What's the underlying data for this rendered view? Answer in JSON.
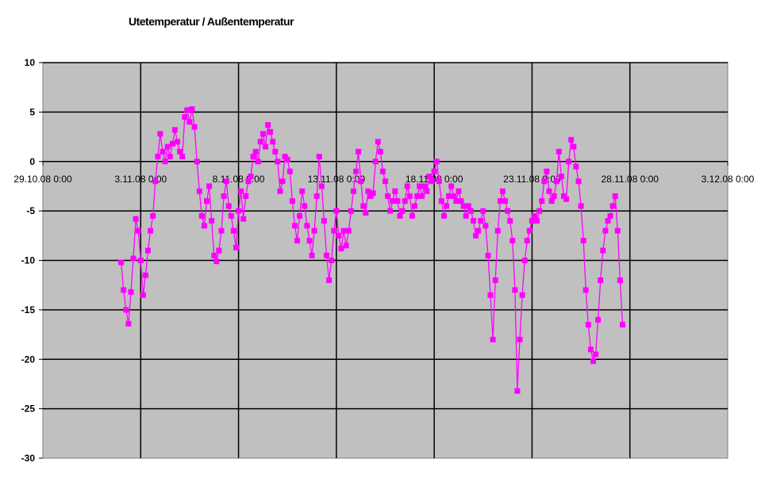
{
  "chart_data": {
    "type": "line",
    "title": "Utetemperatur / Außentemperatur",
    "xlabel": "",
    "ylabel": "",
    "ylim": [
      -30,
      10
    ],
    "yticks": [
      10,
      5,
      0,
      -5,
      -10,
      -15,
      -20,
      -25,
      -30
    ],
    "xlim": [
      "29.10.08 0:00",
      "3.12.08 0:00"
    ],
    "xticks": [
      "29.10.08 0:00",
      "3.11.08 0:00",
      "8.11.08 0:00",
      "13.11.08 0:00",
      "18.11.08 0:00",
      "23.11.08 0:00",
      "28.11.08 0:00",
      "3.12.08 0:00"
    ],
    "grid": true,
    "plot_background": "#c0c0c0",
    "gridline_color": "#000000",
    "series": [
      {
        "color": "#ff00ff",
        "marker": "square",
        "points": [
          [
            "2.11.08 0:00",
            -10.2
          ],
          [
            "2.11.08 3:00",
            -13.0
          ],
          [
            "2.11.08 6:00",
            -15.0
          ],
          [
            "2.11.08 9:00",
            -16.4
          ],
          [
            "2.11.08 12:00",
            -13.2
          ],
          [
            "2.11.08 15:00",
            -9.8
          ],
          [
            "2.11.08 18:00",
            -5.8
          ],
          [
            "2.11.08 21:00",
            -7.0
          ],
          [
            "3.11.08 0:00",
            -10.0
          ],
          [
            "3.11.08 3:00",
            -13.5
          ],
          [
            "3.11.08 6:00",
            -11.5
          ],
          [
            "3.11.08 9:00",
            -9.0
          ],
          [
            "3.11.08 12:00",
            -7.0
          ],
          [
            "3.11.08 15:00",
            -5.5
          ],
          [
            "3.11.08 18:00",
            -2.0
          ],
          [
            "3.11.08 21:00",
            0.5
          ],
          [
            "4.11.08 0:00",
            2.8
          ],
          [
            "4.11.08 3:00",
            1.0
          ],
          [
            "4.11.08 6:00",
            0.0
          ],
          [
            "4.11.08 9:00",
            1.5
          ],
          [
            "4.11.08 12:00",
            0.5
          ],
          [
            "4.11.08 15:00",
            1.8
          ],
          [
            "4.11.08 18:00",
            3.2
          ],
          [
            "4.11.08 21:00",
            2.0
          ],
          [
            "5.11.08 0:00",
            1.0
          ],
          [
            "5.11.08 3:00",
            0.5
          ],
          [
            "5.11.08 6:00",
            4.5
          ],
          [
            "5.11.08 9:00",
            5.2
          ],
          [
            "5.11.08 12:00",
            4.0
          ],
          [
            "5.11.08 15:00",
            5.3
          ],
          [
            "5.11.08 18:00",
            3.5
          ],
          [
            "5.11.08 21:00",
            0.0
          ],
          [
            "6.11.08 0:00",
            -3.0
          ],
          [
            "6.11.08 3:00",
            -5.5
          ],
          [
            "6.11.08 6:00",
            -6.5
          ],
          [
            "6.11.08 9:00",
            -4.0
          ],
          [
            "6.11.08 12:00",
            -2.5
          ],
          [
            "6.11.08 15:00",
            -6.0
          ],
          [
            "6.11.08 18:00",
            -9.5
          ],
          [
            "6.11.08 21:00",
            -10.1
          ],
          [
            "7.11.08 0:00",
            -9.0
          ],
          [
            "7.11.08 3:00",
            -7.0
          ],
          [
            "7.11.08 6:00",
            -3.5
          ],
          [
            "7.11.08 9:00",
            -2.0
          ],
          [
            "7.11.08 12:00",
            -4.5
          ],
          [
            "7.11.08 15:00",
            -5.5
          ],
          [
            "7.11.08 18:00",
            -7.0
          ],
          [
            "7.11.08 21:00",
            -8.7
          ],
          [
            "8.11.08 0:00",
            -5.0
          ],
          [
            "8.11.08 3:00",
            -3.0
          ],
          [
            "8.11.08 6:00",
            -5.8
          ],
          [
            "8.11.08 9:00",
            -3.5
          ],
          [
            "8.11.08 12:00",
            -2.0
          ],
          [
            "8.11.08 15:00",
            -1.5
          ],
          [
            "8.11.08 18:00",
            0.5
          ],
          [
            "8.11.08 21:00",
            1.0
          ],
          [
            "9.11.08 0:00",
            0.0
          ],
          [
            "9.11.08 3:00",
            2.0
          ],
          [
            "9.11.08 6:00",
            2.8
          ],
          [
            "9.11.08 9:00",
            1.5
          ],
          [
            "9.11.08 12:00",
            3.7
          ],
          [
            "9.11.08 15:00",
            3.0
          ],
          [
            "9.11.08 18:00",
            2.0
          ],
          [
            "9.11.08 21:00",
            1.0
          ],
          [
            "10.11.08 0:00",
            0.0
          ],
          [
            "10.11.08 3:00",
            -3.0
          ],
          [
            "10.11.08 6:00",
            -2.0
          ],
          [
            "10.11.08 9:00",
            0.5
          ],
          [
            "10.11.08 12:00",
            0.2
          ],
          [
            "10.11.08 15:00",
            -1.0
          ],
          [
            "10.11.08 18:00",
            -4.0
          ],
          [
            "10.11.08 21:00",
            -6.5
          ],
          [
            "11.11.08 0:00",
            -8.0
          ],
          [
            "11.11.08 3:00",
            -5.5
          ],
          [
            "11.11.08 6:00",
            -3.0
          ],
          [
            "11.11.08 9:00",
            -4.5
          ],
          [
            "11.11.08 12:00",
            -6.5
          ],
          [
            "11.11.08 15:00",
            -8.0
          ],
          [
            "11.11.08 18:00",
            -9.5
          ],
          [
            "11.11.08 21:00",
            -7.0
          ],
          [
            "12.11.08 0:00",
            -3.5
          ],
          [
            "12.11.08 3:00",
            0.5
          ],
          [
            "12.11.08 6:00",
            -2.5
          ],
          [
            "12.11.08 9:00",
            -6.0
          ],
          [
            "12.11.08 12:00",
            -9.5
          ],
          [
            "12.11.08 15:00",
            -12.0
          ],
          [
            "12.11.08 18:00",
            -10.0
          ],
          [
            "12.11.08 21:00",
            -7.0
          ],
          [
            "13.11.08 0:00",
            -5.0
          ],
          [
            "13.11.08 3:00",
            -7.5
          ],
          [
            "13.11.08 6:00",
            -8.8
          ],
          [
            "13.11.08 9:00",
            -7.0
          ],
          [
            "13.11.08 12:00",
            -8.5
          ],
          [
            "13.11.08 15:00",
            -7.0
          ],
          [
            "13.11.08 18:00",
            -5.0
          ],
          [
            "13.11.08 21:00",
            -3.0
          ],
          [
            "14.11.08 0:00",
            -1.0
          ],
          [
            "14.11.08 3:00",
            1.0
          ],
          [
            "14.11.08 6:00",
            -2.0
          ],
          [
            "14.11.08 9:00",
            -4.5
          ],
          [
            "14.11.08 12:00",
            -5.2
          ],
          [
            "14.11.08 15:00",
            -3.0
          ],
          [
            "14.11.08 18:00",
            -3.5
          ],
          [
            "14.11.08 21:00",
            -3.2
          ],
          [
            "15.11.08 0:00",
            0.0
          ],
          [
            "15.11.08 3:00",
            2.0
          ],
          [
            "15.11.08 6:00",
            1.0
          ],
          [
            "15.11.08 9:00",
            -1.0
          ],
          [
            "15.11.08 12:00",
            -2.0
          ],
          [
            "15.11.08 15:00",
            -3.5
          ],
          [
            "15.11.08 18:00",
            -5.0
          ],
          [
            "15.11.08 21:00",
            -4.0
          ],
          [
            "16.11.08 0:00",
            -3.0
          ],
          [
            "16.11.08 3:00",
            -4.0
          ],
          [
            "16.11.08 6:00",
            -5.5
          ],
          [
            "16.11.08 9:00",
            -5.0
          ],
          [
            "16.11.08 12:00",
            -4.0
          ],
          [
            "16.11.08 15:00",
            -2.5
          ],
          [
            "16.11.08 18:00",
            -3.5
          ],
          [
            "16.11.08 21:00",
            -5.5
          ],
          [
            "17.11.08 0:00",
            -4.5
          ],
          [
            "17.11.08 3:00",
            -3.5
          ],
          [
            "17.11.08 6:00",
            -2.5
          ],
          [
            "17.11.08 9:00",
            -3.5
          ],
          [
            "17.11.08 12:00",
            -2.5
          ],
          [
            "17.11.08 15:00",
            -3.0
          ],
          [
            "17.11.08 18:00",
            -1.5
          ],
          [
            "17.11.08 21:00",
            -2.0
          ],
          [
            "18.11.08 0:00",
            -1.0
          ],
          [
            "18.11.08 3:00",
            0.0
          ],
          [
            "18.11.08 6:00",
            -2.0
          ],
          [
            "18.11.08 9:00",
            -4.0
          ],
          [
            "18.11.08 12:00",
            -5.5
          ],
          [
            "18.11.08 15:00",
            -4.5
          ],
          [
            "18.11.08 18:00",
            -3.5
          ],
          [
            "18.11.08 21:00",
            -2.5
          ],
          [
            "19.11.08 0:00",
            -3.5
          ],
          [
            "19.11.08 3:00",
            -4.0
          ],
          [
            "19.11.08 6:00",
            -3.0
          ],
          [
            "19.11.08 9:00",
            -4.0
          ],
          [
            "19.11.08 12:00",
            -4.5
          ],
          [
            "19.11.08 15:00",
            -5.5
          ],
          [
            "19.11.08 18:00",
            -4.5
          ],
          [
            "19.11.08 21:00",
            -5.0
          ],
          [
            "20.11.08 0:00",
            -6.0
          ],
          [
            "20.11.08 3:00",
            -7.5
          ],
          [
            "20.11.08 6:00",
            -7.0
          ],
          [
            "20.11.08 9:00",
            -6.0
          ],
          [
            "20.11.08 12:00",
            -5.0
          ],
          [
            "20.11.08 15:00",
            -6.5
          ],
          [
            "20.11.08 18:00",
            -9.5
          ],
          [
            "20.11.08 21:00",
            -13.5
          ],
          [
            "21.11.08 0:00",
            -18.0
          ],
          [
            "21.11.08 3:00",
            -12.0
          ],
          [
            "21.11.08 6:00",
            -7.0
          ],
          [
            "21.11.08 9:00",
            -4.0
          ],
          [
            "21.11.08 12:00",
            -3.0
          ],
          [
            "21.11.08 15:00",
            -4.0
          ],
          [
            "21.11.08 18:00",
            -5.0
          ],
          [
            "21.11.08 21:00",
            -6.0
          ],
          [
            "22.11.08 0:00",
            -8.0
          ],
          [
            "22.11.08 3:00",
            -13.0
          ],
          [
            "22.11.08 6:00",
            -23.2
          ],
          [
            "22.11.08 9:00",
            -18.0
          ],
          [
            "22.11.08 12:00",
            -13.5
          ],
          [
            "22.11.08 15:00",
            -10.0
          ],
          [
            "22.11.08 18:00",
            -8.0
          ],
          [
            "22.11.08 21:00",
            -7.0
          ],
          [
            "23.11.08 0:00",
            -6.0
          ],
          [
            "23.11.08 3:00",
            -5.5
          ],
          [
            "23.11.08 6:00",
            -6.0
          ],
          [
            "23.11.08 9:00",
            -5.0
          ],
          [
            "23.11.08 12:00",
            -4.0
          ],
          [
            "23.11.08 15:00",
            -2.0
          ],
          [
            "23.11.08 18:00",
            -1.0
          ],
          [
            "23.11.08 21:00",
            -3.0
          ],
          [
            "24.11.08 0:00",
            -4.0
          ],
          [
            "24.11.08 3:00",
            -3.5
          ],
          [
            "24.11.08 6:00",
            -2.0
          ],
          [
            "24.11.08 9:00",
            1.0
          ],
          [
            "24.11.08 12:00",
            -1.5
          ],
          [
            "24.11.08 15:00",
            -3.5
          ],
          [
            "24.11.08 18:00",
            -3.8
          ],
          [
            "24.11.08 21:00",
            0.0
          ],
          [
            "25.11.08 0:00",
            2.2
          ],
          [
            "25.11.08 3:00",
            1.5
          ],
          [
            "25.11.08 6:00",
            -0.5
          ],
          [
            "25.11.08 9:00",
            -2.0
          ],
          [
            "25.11.08 12:00",
            -4.5
          ],
          [
            "25.11.08 15:00",
            -8.0
          ],
          [
            "25.11.08 18:00",
            -13.0
          ],
          [
            "25.11.08 21:00",
            -16.5
          ],
          [
            "26.11.08 0:00",
            -19.0
          ],
          [
            "26.11.08 3:00",
            -20.2
          ],
          [
            "26.11.08 6:00",
            -19.5
          ],
          [
            "26.11.08 9:00",
            -16.0
          ],
          [
            "26.11.08 12:00",
            -12.0
          ],
          [
            "26.11.08 15:00",
            -9.0
          ],
          [
            "26.11.08 18:00",
            -7.0
          ],
          [
            "26.11.08 21:00",
            -6.0
          ],
          [
            "27.11.08 0:00",
            -5.5
          ],
          [
            "27.11.08 3:00",
            -4.5
          ],
          [
            "27.11.08 6:00",
            -3.5
          ],
          [
            "27.11.08 9:00",
            -7.0
          ],
          [
            "27.11.08 12:00",
            -12.0
          ],
          [
            "27.11.08 15:00",
            -16.5
          ]
        ]
      }
    ]
  }
}
